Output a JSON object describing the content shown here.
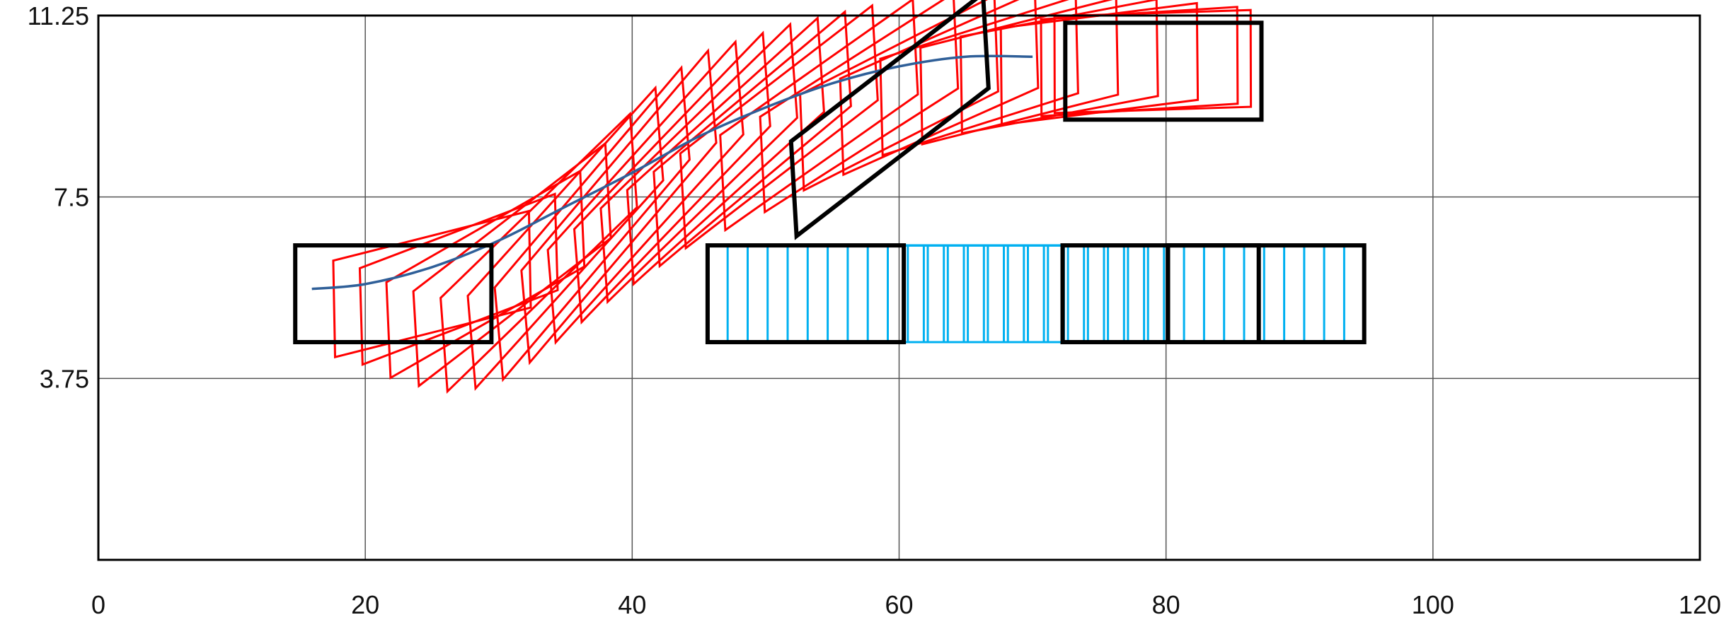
{
  "chart_data": {
    "type": "scatter",
    "title": "",
    "xlabel": "",
    "ylabel": "",
    "xlim": [
      0,
      120
    ],
    "ylim": [
      0,
      11.25
    ],
    "x_ticks": [
      {
        "value": 0,
        "label": "0"
      },
      {
        "value": 20,
        "label": "20"
      },
      {
        "value": 40,
        "label": "40"
      },
      {
        "value": 60,
        "label": "60"
      },
      {
        "value": 80,
        "label": "80"
      },
      {
        "value": 100,
        "label": "100"
      },
      {
        "value": 120,
        "label": "120"
      }
    ],
    "y_ticks": [
      {
        "value": 3.75,
        "label": "3.75"
      },
      {
        "value": 7.5,
        "label": "7.5"
      },
      {
        "value": 11.25,
        "label": "11.25"
      }
    ],
    "grid": true,
    "colors": {
      "trajectory": "#2f5f98",
      "lane_change_vehicle": "#ff0000",
      "straight_vehicle": "#00b0f0",
      "snapshot_outline": "#000000",
      "grid": "#555555",
      "axes": "#000000"
    },
    "vehicle_size": {
      "length": 14.7,
      "width": 2
    },
    "trajectory": {
      "x": [
        16,
        20,
        25,
        30,
        35,
        40,
        45,
        50,
        55,
        60,
        65,
        70
      ],
      "y": [
        5.6,
        5.7,
        6.05,
        6.6,
        7.3,
        8.0,
        8.75,
        9.35,
        9.85,
        10.2,
        10.4,
        10.4
      ]
    },
    "series": [
      {
        "kind": "lane_change_vehicle",
        "rects": [
          {
            "cx": 25,
            "cy": 5.7,
            "angle": 4
          },
          {
            "cx": 27,
            "cy": 5.8,
            "angle": 6
          },
          {
            "cx": 29,
            "cy": 5.9,
            "angle": 9
          },
          {
            "cx": 31,
            "cy": 6.1,
            "angle": 12
          },
          {
            "cx": 33,
            "cy": 6.35,
            "angle": 15
          },
          {
            "cx": 35,
            "cy": 6.65,
            "angle": 17
          },
          {
            "cx": 37,
            "cy": 6.95,
            "angle": 18
          },
          {
            "cx": 39,
            "cy": 7.3,
            "angle": 18
          },
          {
            "cx": 41,
            "cy": 7.6,
            "angle": 17
          },
          {
            "cx": 43,
            "cy": 7.9,
            "angle": 16
          },
          {
            "cx": 45,
            "cy": 8.2,
            "angle": 15
          },
          {
            "cx": 47,
            "cy": 8.45,
            "angle": 14
          },
          {
            "cx": 49,
            "cy": 8.7,
            "angle": 13
          },
          {
            "cx": 51,
            "cy": 8.95,
            "angle": 12
          },
          {
            "cx": 54,
            "cy": 9.2,
            "angle": 11
          },
          {
            "cx": 57,
            "cy": 9.45,
            "angle": 10
          },
          {
            "cx": 60,
            "cy": 9.65,
            "angle": 8
          },
          {
            "cx": 63,
            "cy": 9.85,
            "angle": 7
          },
          {
            "cx": 66,
            "cy": 10.0,
            "angle": 5
          },
          {
            "cx": 69,
            "cy": 10.1,
            "angle": 4
          },
          {
            "cx": 72,
            "cy": 10.2,
            "angle": 3
          },
          {
            "cx": 75,
            "cy": 10.25,
            "angle": 2
          },
          {
            "cx": 78,
            "cy": 10.3,
            "angle": 1
          },
          {
            "cx": 79,
            "cy": 10.3,
            "angle": 0.5
          }
        ]
      },
      {
        "kind": "straight_vehicle",
        "rects": [
          {
            "cx": 53,
            "cy": 5.5,
            "angle": 0
          },
          {
            "cx": 54.5,
            "cy": 5.5,
            "angle": 0
          },
          {
            "cx": 56,
            "cy": 5.5,
            "angle": 0
          },
          {
            "cx": 57.5,
            "cy": 5.5,
            "angle": 0
          },
          {
            "cx": 59,
            "cy": 5.5,
            "angle": 0
          },
          {
            "cx": 60.5,
            "cy": 5.5,
            "angle": 0
          },
          {
            "cx": 62,
            "cy": 5.5,
            "angle": 0
          },
          {
            "cx": 63.5,
            "cy": 5.5,
            "angle": 0
          },
          {
            "cx": 65,
            "cy": 5.5,
            "angle": 0
          },
          {
            "cx": 66.5,
            "cy": 5.5,
            "angle": 0
          },
          {
            "cx": 68,
            "cy": 5.5,
            "angle": 0
          },
          {
            "cx": 69.5,
            "cy": 5.5,
            "angle": 0
          },
          {
            "cx": 71,
            "cy": 5.5,
            "angle": 0
          },
          {
            "cx": 72.5,
            "cy": 5.5,
            "angle": 0
          },
          {
            "cx": 74,
            "cy": 5.5,
            "angle": 0
          },
          {
            "cx": 75.5,
            "cy": 5.5,
            "angle": 0
          },
          {
            "cx": 77,
            "cy": 5.5,
            "angle": 0
          },
          {
            "cx": 78.5,
            "cy": 5.5,
            "angle": 0
          },
          {
            "cx": 80,
            "cy": 5.5,
            "angle": 0
          },
          {
            "cx": 81.5,
            "cy": 5.5,
            "angle": 0
          },
          {
            "cx": 83,
            "cy": 5.5,
            "angle": 0
          },
          {
            "cx": 84.5,
            "cy": 5.5,
            "angle": 0
          },
          {
            "cx": 86,
            "cy": 5.5,
            "angle": 0
          },
          {
            "cx": 87.5,
            "cy": 5.5,
            "angle": 0
          }
        ]
      },
      {
        "kind": "snapshot_outline",
        "rects": [
          {
            "cx": 22.1,
            "cy": 5.5,
            "angle": 0
          },
          {
            "cx": 59.3,
            "cy": 9.2,
            "angle": 12
          },
          {
            "cx": 79.8,
            "cy": 10.1,
            "angle": 0
          },
          {
            "cx": 53.0,
            "cy": 5.5,
            "angle": 0
          },
          {
            "cx": 79.6,
            "cy": 5.5,
            "angle": 0
          },
          {
            "cx": 87.5,
            "cy": 5.5,
            "angle": 0
          }
        ]
      }
    ]
  }
}
